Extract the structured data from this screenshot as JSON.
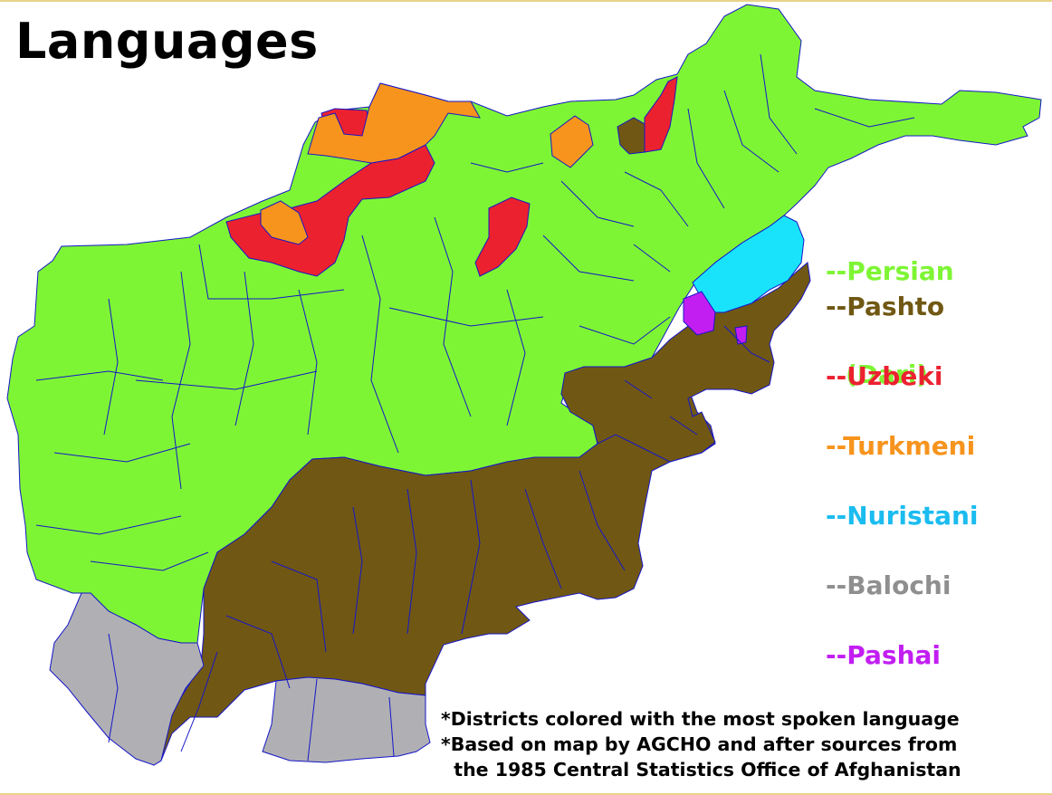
{
  "title": "Languages",
  "legend": [
    {
      "label": "--Persian",
      "label2": "(Dari)",
      "color": "#7ef534"
    },
    {
      "label": "--Pashto",
      "color": "#705814"
    },
    {
      "label": "--Uzbeki",
      "color": "#ec2130"
    },
    {
      "label": "--Turkmeni",
      "color": "#f7941d"
    },
    {
      "label": "--Nuristani",
      "color": "#1bbcf0"
    },
    {
      "label": "--Balochi",
      "color": "#8f8f8f"
    },
    {
      "label": "--Pashai",
      "color": "#c21ef2"
    }
  ],
  "map_colors": {
    "persian": "#7ef534",
    "pashto": "#705814",
    "uzbeki": "#ec2130",
    "turkmeni": "#f7941d",
    "nuristani": "#19e3fb",
    "balochi": "#b0b0b4",
    "pashai": "#c21ef2",
    "district_border": "#1616c8"
  },
  "notes": [
    "*Districts colored with the most spoken language",
    "*Based on map by AGCHO and after sources from",
    "  the 1985 Central Statistics Office of Afghanistan"
  ]
}
